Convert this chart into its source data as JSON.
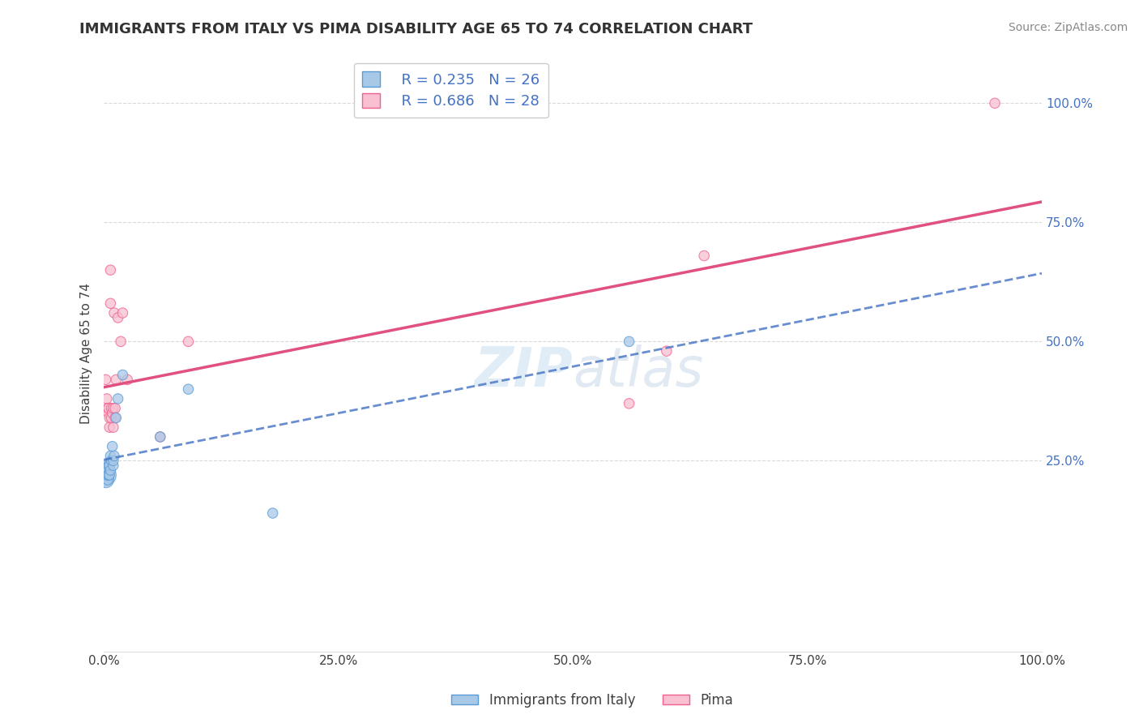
{
  "title": "IMMIGRANTS FROM ITALY VS PIMA DISABILITY AGE 65 TO 74 CORRELATION CHART",
  "source": "Source: ZipAtlas.com",
  "ylabel": "Disability Age 65 to 74",
  "xlim": [
    0.0,
    1.0
  ],
  "ylim": [
    -0.15,
    1.1
  ],
  "xtick_labels": [
    "0.0%",
    "25.0%",
    "50.0%",
    "75.0%",
    "100.0%"
  ],
  "xtick_values": [
    0.0,
    0.25,
    0.5,
    0.75,
    1.0
  ],
  "ytick_labels": [
    "25.0%",
    "50.0%",
    "75.0%",
    "100.0%"
  ],
  "ytick_values": [
    0.25,
    0.5,
    0.75,
    1.0
  ],
  "series1_label": "Immigrants from Italy",
  "series1_color": "#a8c8e8",
  "series1_edge_color": "#5b9bd5",
  "series1_line_color": "#4472c4",
  "series1_R": 0.235,
  "series1_N": 26,
  "series2_label": "Pima",
  "series2_color": "#f8c0d0",
  "series2_edge_color": "#f06090",
  "series2_line_color": "#e05080",
  "series2_R": 0.686,
  "series2_N": 28,
  "watermark": "ZIPatlas",
  "background_color": "#ffffff",
  "grid_color": "#d0d0d0",
  "title_color": "#333333",
  "ytick_color": "#4472c4",
  "series1_scatter_x": [
    0.001,
    0.002,
    0.002,
    0.003,
    0.003,
    0.003,
    0.004,
    0.004,
    0.005,
    0.005,
    0.006,
    0.006,
    0.007,
    0.007,
    0.008,
    0.009,
    0.01,
    0.01,
    0.011,
    0.013,
    0.015,
    0.02,
    0.06,
    0.09,
    0.18,
    0.56
  ],
  "series1_scatter_y": [
    0.22,
    0.23,
    0.21,
    0.24,
    0.22,
    0.23,
    0.21,
    0.22,
    0.24,
    0.22,
    0.24,
    0.22,
    0.23,
    0.26,
    0.25,
    0.28,
    0.24,
    0.25,
    0.26,
    0.34,
    0.38,
    0.43,
    0.3,
    0.4,
    0.14,
    0.5
  ],
  "series1_scatter_sizes": [
    400,
    200,
    200,
    100,
    100,
    100,
    80,
    80,
    80,
    80,
    80,
    80,
    80,
    80,
    80,
    80,
    80,
    80,
    80,
    80,
    80,
    80,
    80,
    80,
    80,
    80
  ],
  "series2_scatter_x": [
    0.002,
    0.003,
    0.004,
    0.005,
    0.005,
    0.006,
    0.006,
    0.007,
    0.007,
    0.008,
    0.008,
    0.009,
    0.01,
    0.01,
    0.011,
    0.012,
    0.012,
    0.013,
    0.015,
    0.018,
    0.02,
    0.025,
    0.06,
    0.09,
    0.56,
    0.6,
    0.64,
    0.95
  ],
  "series2_scatter_y": [
    0.42,
    0.38,
    0.36,
    0.35,
    0.36,
    0.34,
    0.32,
    0.65,
    0.58,
    0.36,
    0.34,
    0.35,
    0.36,
    0.32,
    0.56,
    0.36,
    0.34,
    0.42,
    0.55,
    0.5,
    0.56,
    0.42,
    0.3,
    0.5,
    0.37,
    0.48,
    0.68,
    1.0
  ],
  "series2_scatter_sizes": [
    80,
    80,
    80,
    80,
    80,
    80,
    80,
    80,
    80,
    80,
    80,
    80,
    80,
    80,
    80,
    80,
    80,
    80,
    80,
    80,
    80,
    80,
    80,
    80,
    80,
    80,
    80,
    80
  ],
  "trend_x_start": 0.0,
  "trend_x_end": 1.0
}
